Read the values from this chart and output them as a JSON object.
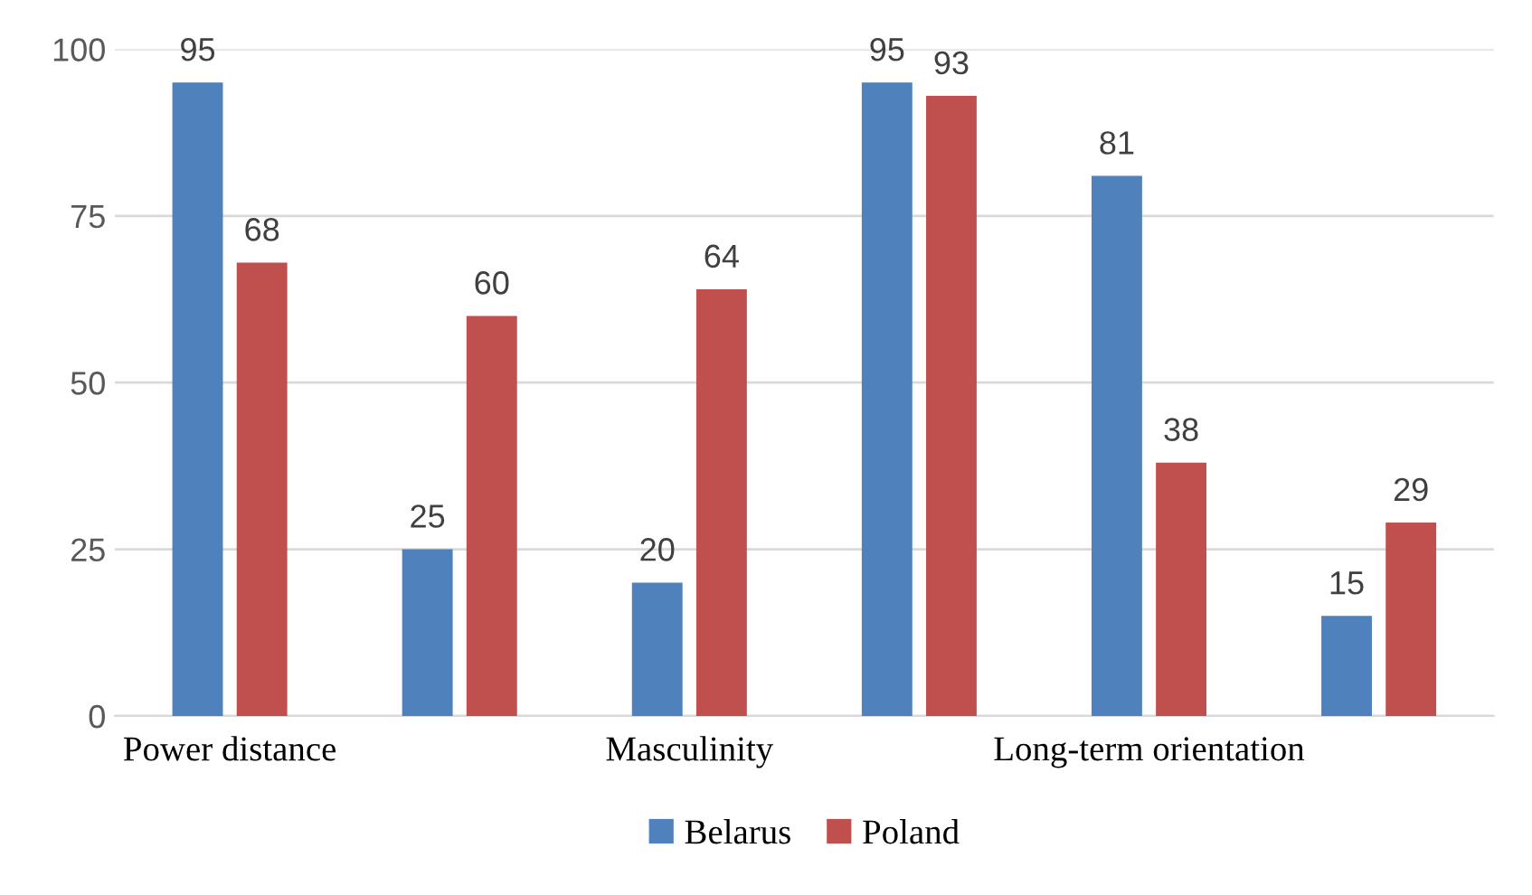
{
  "chart_data": {
    "type": "bar",
    "categories": [
      "Power distance",
      null,
      "Masculinity",
      null,
      "Long-term orientation",
      null
    ],
    "series": [
      {
        "name": "Belarus",
        "color": "#4f81bd",
        "values": [
          95,
          25,
          20,
          95,
          81,
          15
        ]
      },
      {
        "name": "Poland",
        "color": "#c0504d",
        "values": [
          68,
          60,
          64,
          93,
          38,
          29
        ]
      }
    ],
    "ylim": [
      0,
      100
    ],
    "yticks": [
      0,
      25,
      50,
      75,
      100
    ],
    "grid": "y",
    "legend": "bottom",
    "data_labels": true
  }
}
